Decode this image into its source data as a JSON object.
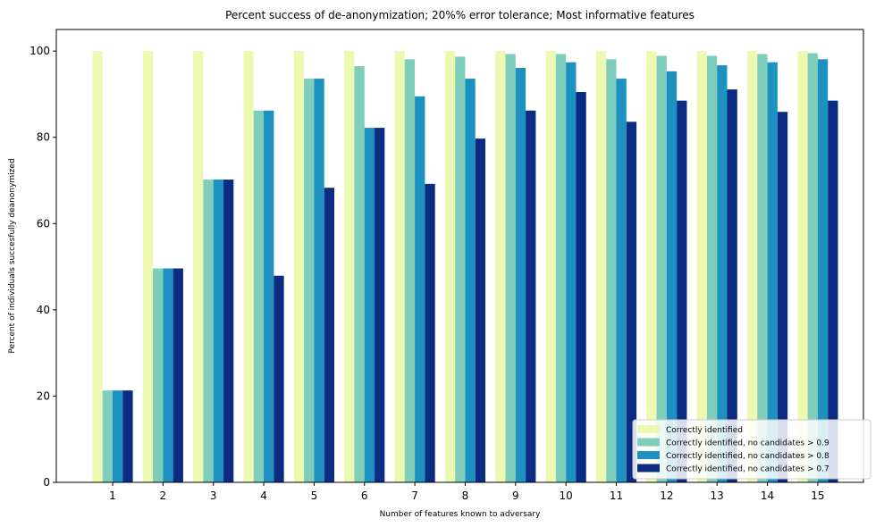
{
  "chart_data": {
    "type": "bar",
    "title": "Percent success of de-anonymization; 20%% error tolerance; Most informative features",
    "xlabel": "Number of features known to adversary",
    "ylabel": "Percent of individuals succesfully deanonymized",
    "categories": [
      "1",
      "2",
      "3",
      "4",
      "5",
      "6",
      "7",
      "8",
      "9",
      "10",
      "11",
      "12",
      "13",
      "14",
      "15"
    ],
    "ylim": [
      0,
      105
    ],
    "yticks": [
      0,
      20,
      40,
      60,
      80,
      100
    ],
    "grid": false,
    "legend_position": "lower-right",
    "series": [
      {
        "name": "Correctly identified",
        "color": "#edf8b1",
        "values": [
          100,
          100,
          100,
          100,
          100,
          100,
          100,
          100,
          100,
          100,
          100,
          100,
          100,
          100,
          100
        ]
      },
      {
        "name": "Correctly identified, no candidates > 0.9",
        "color": "#7fcdbb",
        "values": [
          21.3,
          49.6,
          70.2,
          86.2,
          93.6,
          96.5,
          98.1,
          98.7,
          99.3,
          99.3,
          98.1,
          98.9,
          98.9,
          99.3,
          99.5
        ]
      },
      {
        "name": "Correctly identified, no candidates > 0.8",
        "color": "#1d91c0",
        "values": [
          21.3,
          49.6,
          70.2,
          86.2,
          93.6,
          82.2,
          89.5,
          93.6,
          96.1,
          97.4,
          93.6,
          95.3,
          96.7,
          97.4,
          98.1
        ]
      },
      {
        "name": "Correctly identified, no candidates > 0.7",
        "color": "#0c2c84",
        "values": [
          21.3,
          49.6,
          70.2,
          47.9,
          68.3,
          82.2,
          69.2,
          79.7,
          86.2,
          90.5,
          83.6,
          88.5,
          91.1,
          85.9,
          88.5
        ]
      }
    ]
  }
}
